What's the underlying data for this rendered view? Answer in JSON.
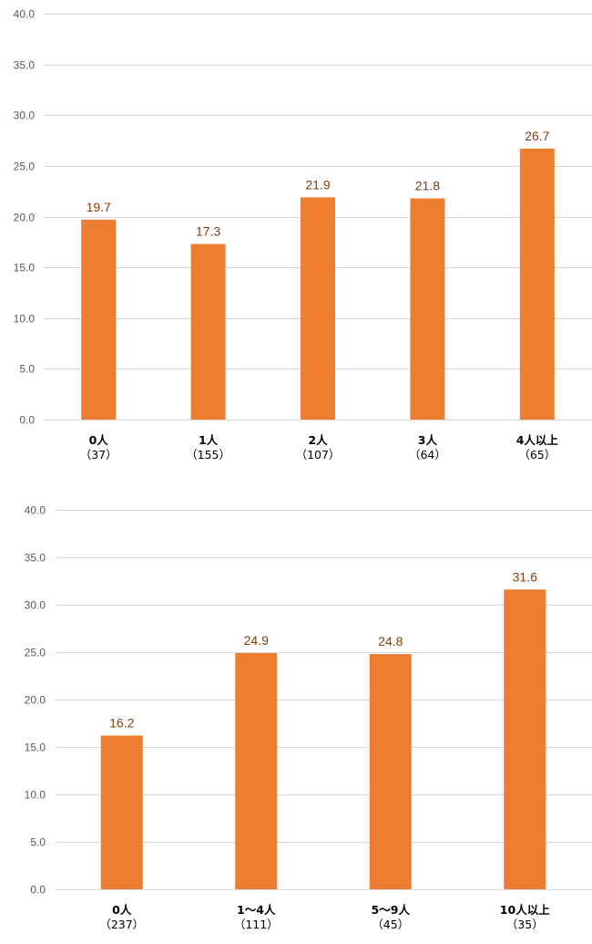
{
  "chart_data": [
    {
      "type": "bar",
      "categories": [
        "0人",
        "1人",
        "2人",
        "3人",
        "4人以上"
      ],
      "counts": [
        "（37）",
        "（155）",
        "（107）",
        "（64）",
        "（65）"
      ],
      "values": [
        19.7,
        17.3,
        21.9,
        21.8,
        26.7
      ],
      "ylim": [
        0,
        40
      ],
      "yticks": [
        "0.0",
        "5.0",
        "10.0",
        "15.0",
        "20.0",
        "25.0",
        "30.0",
        "35.0",
        "40.0"
      ],
      "grid": true,
      "colors": {
        "bar": "#ed7d31",
        "value_label": "#843c0c",
        "grid": "#d9d9d9"
      }
    },
    {
      "type": "bar",
      "categories": [
        "0人",
        "1～4人",
        "5～9人",
        "10人以上"
      ],
      "counts": [
        "（237）",
        "（111）",
        "（45）",
        "（35）"
      ],
      "values": [
        16.2,
        24.9,
        24.8,
        31.6
      ],
      "ylim": [
        0,
        40
      ],
      "yticks": [
        "0.0",
        "5.0",
        "10.0",
        "15.0",
        "20.0",
        "25.0",
        "30.0",
        "35.0",
        "40.0"
      ],
      "grid": true,
      "colors": {
        "bar": "#ed7d31",
        "value_label": "#843c0c",
        "grid": "#d9d9d9"
      }
    }
  ]
}
